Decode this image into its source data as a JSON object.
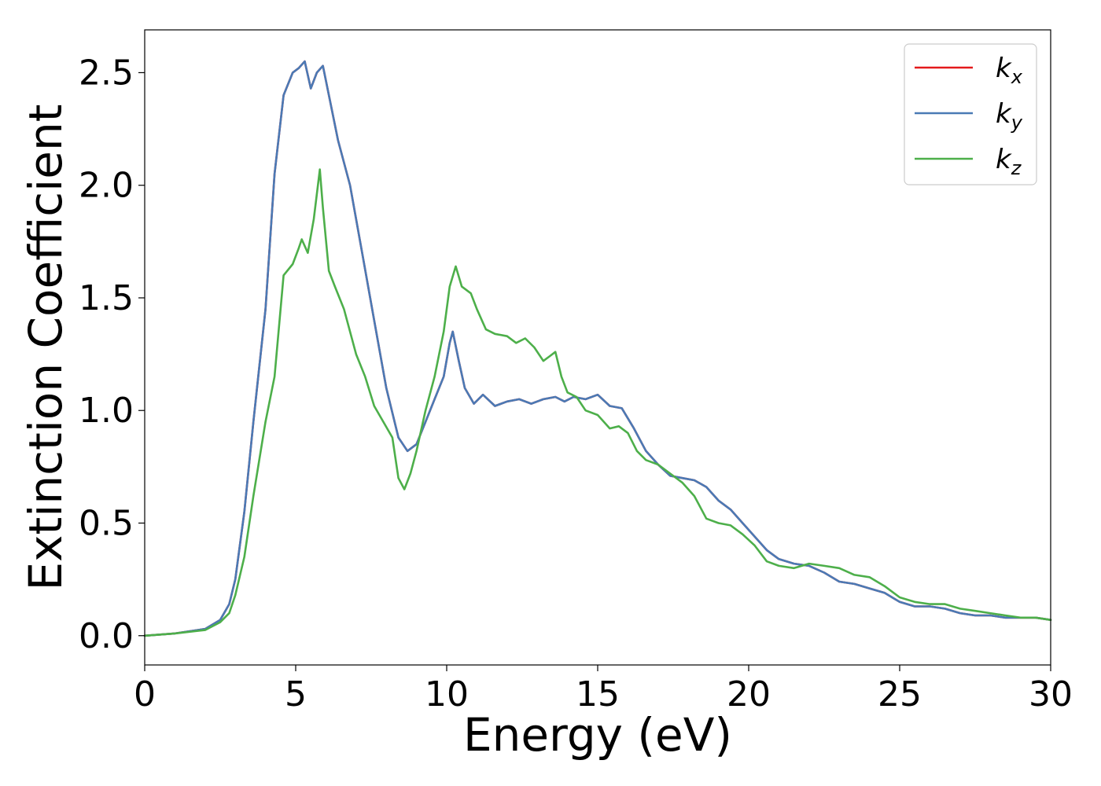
{
  "chart_data": {
    "type": "line",
    "xlabel": "Energy (eV)",
    "ylabel": "Extinction Coefficient",
    "xlim": [
      0,
      30
    ],
    "ylim": [
      -0.13,
      2.69
    ],
    "xticks": [
      0,
      5,
      10,
      15,
      20,
      25,
      30
    ],
    "xtick_labels": [
      "0",
      "5",
      "10",
      "15",
      "20",
      "25",
      "30"
    ],
    "yticks": [
      0.0,
      0.5,
      1.0,
      1.5,
      2.0,
      2.5
    ],
    "ytick_labels": [
      "0.0",
      "0.5",
      "1.0",
      "1.5",
      "2.0",
      "2.5"
    ],
    "grid": false,
    "legend_position": "top-right",
    "series": [
      {
        "name": "k_x",
        "label_base": "k",
        "label_sub": "x",
        "color": "#e41a1c",
        "x": [
          0,
          1,
          2,
          2.5,
          2.8,
          3,
          3.3,
          3.6,
          4,
          4.3,
          4.6,
          4.9,
          5.1,
          5.3,
          5.5,
          5.7,
          5.9,
          6.1,
          6.4,
          6.8,
          7.2,
          7.6,
          8,
          8.4,
          8.7,
          9,
          9.3,
          9.6,
          9.9,
          10.1,
          10.2,
          10.4,
          10.6,
          10.9,
          11.2,
          11.6,
          12,
          12.4,
          12.8,
          13.2,
          13.6,
          13.9,
          14.2,
          14.6,
          15,
          15.4,
          15.8,
          16.2,
          16.6,
          17,
          17.4,
          17.8,
          18.2,
          18.6,
          19,
          19.4,
          19.8,
          20.2,
          20.6,
          21,
          21.5,
          22,
          22.5,
          23,
          23.5,
          24,
          24.5,
          25,
          25.5,
          26,
          26.5,
          27,
          27.5,
          28,
          28.5,
          29,
          29.5,
          30
        ],
        "y": [
          0,
          0.01,
          0.03,
          0.07,
          0.14,
          0.25,
          0.55,
          0.95,
          1.45,
          2.05,
          2.4,
          2.5,
          2.52,
          2.55,
          2.43,
          2.5,
          2.53,
          2.4,
          2.2,
          2.0,
          1.7,
          1.4,
          1.1,
          0.88,
          0.82,
          0.85,
          0.95,
          1.05,
          1.15,
          1.3,
          1.35,
          1.22,
          1.1,
          1.03,
          1.07,
          1.02,
          1.04,
          1.05,
          1.03,
          1.05,
          1.06,
          1.04,
          1.06,
          1.05,
          1.07,
          1.02,
          1.01,
          0.92,
          0.82,
          0.76,
          0.71,
          0.7,
          0.69,
          0.66,
          0.6,
          0.56,
          0.5,
          0.44,
          0.38,
          0.34,
          0.32,
          0.31,
          0.28,
          0.24,
          0.23,
          0.21,
          0.19,
          0.15,
          0.13,
          0.13,
          0.12,
          0.1,
          0.09,
          0.09,
          0.08,
          0.08,
          0.08,
          0.07
        ]
      },
      {
        "name": "k_y",
        "label_base": "k",
        "label_sub": "y",
        "color": "#4a7ab5",
        "x": [
          0,
          1,
          2,
          2.5,
          2.8,
          3,
          3.3,
          3.6,
          4,
          4.3,
          4.6,
          4.9,
          5.1,
          5.3,
          5.5,
          5.7,
          5.9,
          6.1,
          6.4,
          6.8,
          7.2,
          7.6,
          8,
          8.4,
          8.7,
          9,
          9.3,
          9.6,
          9.9,
          10.1,
          10.2,
          10.4,
          10.6,
          10.9,
          11.2,
          11.6,
          12,
          12.4,
          12.8,
          13.2,
          13.6,
          13.9,
          14.2,
          14.6,
          15,
          15.4,
          15.8,
          16.2,
          16.6,
          17,
          17.4,
          17.8,
          18.2,
          18.6,
          19,
          19.4,
          19.8,
          20.2,
          20.6,
          21,
          21.5,
          22,
          22.5,
          23,
          23.5,
          24,
          24.5,
          25,
          25.5,
          26,
          26.5,
          27,
          27.5,
          28,
          28.5,
          29,
          29.5,
          30
        ],
        "y": [
          0,
          0.01,
          0.03,
          0.07,
          0.14,
          0.25,
          0.55,
          0.95,
          1.45,
          2.05,
          2.4,
          2.5,
          2.52,
          2.55,
          2.43,
          2.5,
          2.53,
          2.4,
          2.2,
          2.0,
          1.7,
          1.4,
          1.1,
          0.88,
          0.82,
          0.85,
          0.95,
          1.05,
          1.15,
          1.3,
          1.35,
          1.22,
          1.1,
          1.03,
          1.07,
          1.02,
          1.04,
          1.05,
          1.03,
          1.05,
          1.06,
          1.04,
          1.06,
          1.05,
          1.07,
          1.02,
          1.01,
          0.92,
          0.82,
          0.76,
          0.71,
          0.7,
          0.69,
          0.66,
          0.6,
          0.56,
          0.5,
          0.44,
          0.38,
          0.34,
          0.32,
          0.31,
          0.28,
          0.24,
          0.23,
          0.21,
          0.19,
          0.15,
          0.13,
          0.13,
          0.12,
          0.1,
          0.09,
          0.09,
          0.08,
          0.08,
          0.08,
          0.07
        ]
      },
      {
        "name": "k_z",
        "label_base": "k",
        "label_sub": "z",
        "color": "#4daf4a",
        "x": [
          0,
          1,
          2,
          2.5,
          2.8,
          3,
          3.3,
          3.6,
          4,
          4.3,
          4.6,
          4.9,
          5.1,
          5.2,
          5.4,
          5.6,
          5.8,
          5.9,
          6.1,
          6.3,
          6.6,
          7,
          7.3,
          7.6,
          7.9,
          8.2,
          8.4,
          8.6,
          8.8,
          9,
          9.3,
          9.6,
          9.9,
          10.1,
          10.3,
          10.5,
          10.8,
          11,
          11.3,
          11.6,
          12,
          12.3,
          12.6,
          12.9,
          13.2,
          13.4,
          13.6,
          13.8,
          14,
          14.3,
          14.6,
          15,
          15.4,
          15.7,
          16,
          16.3,
          16.6,
          17,
          17.4,
          17.8,
          18.2,
          18.6,
          19,
          19.4,
          19.8,
          20.2,
          20.6,
          21,
          21.5,
          22,
          22.5,
          23,
          23.5,
          24,
          24.5,
          25,
          25.5,
          26,
          26.5,
          27,
          27.5,
          28,
          28.5,
          29,
          29.5,
          30
        ],
        "y": [
          0,
          0.01,
          0.025,
          0.06,
          0.1,
          0.18,
          0.35,
          0.62,
          0.95,
          1.15,
          1.6,
          1.65,
          1.72,
          1.76,
          1.7,
          1.85,
          2.07,
          1.9,
          1.62,
          1.55,
          1.45,
          1.25,
          1.15,
          1.02,
          0.95,
          0.88,
          0.7,
          0.65,
          0.72,
          0.82,
          1.0,
          1.15,
          1.35,
          1.55,
          1.64,
          1.55,
          1.52,
          1.45,
          1.36,
          1.34,
          1.33,
          1.3,
          1.32,
          1.28,
          1.22,
          1.24,
          1.26,
          1.15,
          1.08,
          1.06,
          1.0,
          0.98,
          0.92,
          0.93,
          0.9,
          0.82,
          0.78,
          0.76,
          0.72,
          0.68,
          0.62,
          0.52,
          0.5,
          0.49,
          0.45,
          0.4,
          0.33,
          0.31,
          0.3,
          0.32,
          0.31,
          0.3,
          0.27,
          0.26,
          0.22,
          0.17,
          0.15,
          0.14,
          0.14,
          0.12,
          0.11,
          0.1,
          0.09,
          0.08,
          0.08,
          0.07
        ]
      }
    ]
  }
}
